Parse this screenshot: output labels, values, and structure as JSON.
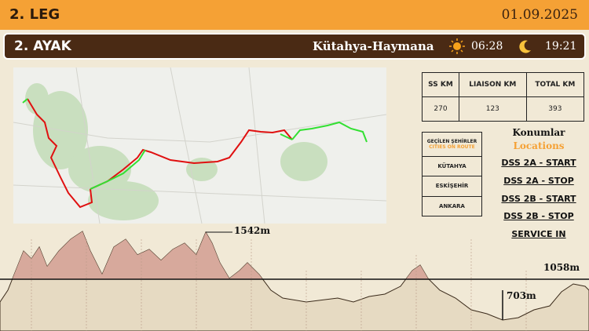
{
  "header": {
    "title": "2. LEG",
    "date": "01.09.2025"
  },
  "stage_bar": {
    "title": "2. AYAK",
    "route": "Kütahya-Haymana",
    "sunrise": "06:28",
    "sunset": "19:21"
  },
  "distance_table": {
    "headers": [
      "SS KM",
      "LIAISON KM",
      "TOTAL KM"
    ],
    "values": [
      270,
      123,
      393
    ]
  },
  "cities": {
    "title": "GEÇİLEN ŞEHİRLER",
    "subtitle": "CITIES ON ROUTE",
    "items": [
      "KÜTAHYA",
      "ESKİŞEHİR",
      "ANKARA"
    ]
  },
  "locations": {
    "title": "Konumlar",
    "subtitle": "Locations",
    "items": [
      "DSS 2A - START",
      "DSS 2A - STOP",
      "DSS 2B - START",
      "DSS 2B - STOP",
      "SERVICE IN"
    ]
  },
  "elevation": {
    "max": "1542m",
    "reference": "1058m",
    "min": "703m"
  }
}
